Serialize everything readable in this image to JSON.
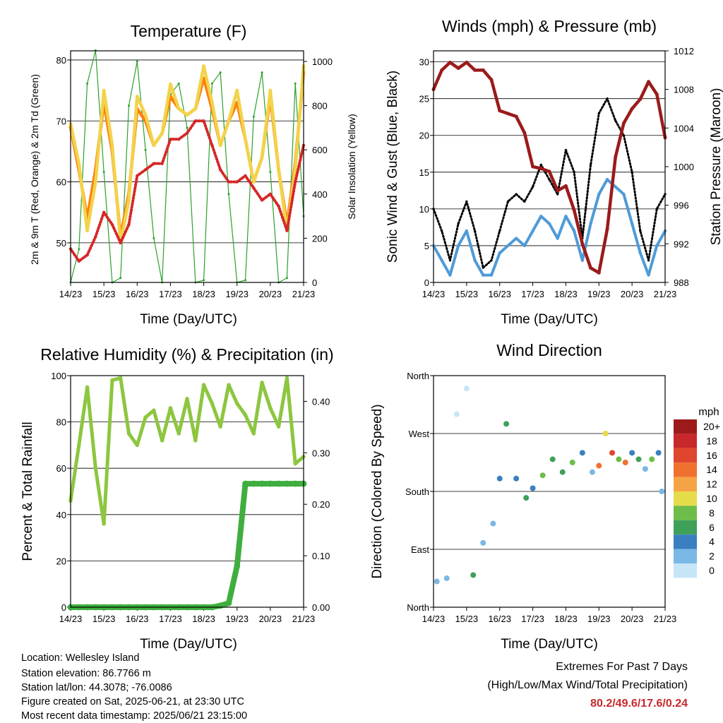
{
  "time_ticks": [
    "14/23",
    "15/23",
    "16/23",
    "17/23",
    "18/23",
    "19/23",
    "20/23",
    "21/23"
  ],
  "colors": {
    "t2m": "#d62728",
    "t9m": "#ff7f0e",
    "td": "#2ca02c",
    "solar": "#f2d34a",
    "wind": "#4f9bd7",
    "gust": "#000000",
    "pressure": "#9b1b1b",
    "rh": "#8dc63f",
    "precip": "#3fae3f",
    "extremes": "#c8282a"
  },
  "chart_data": [
    {
      "type": "line",
      "title": "Temperature (F)",
      "xlabel": "Time (Day/UTC)",
      "ylabel": "2m & 9m T (Red, Orange) & 2m Td (Green)",
      "y2label": "Solar Insolation (Yellow)",
      "x_ticks": [
        "14/23",
        "15/23",
        "16/23",
        "17/23",
        "18/23",
        "19/23",
        "20/23",
        "21/23"
      ],
      "ylim": [
        43.5,
        81.5
      ],
      "yticks": [
        50,
        60,
        70,
        80
      ],
      "y2lim": [
        0,
        1048
      ],
      "y2ticks": [
        0,
        200,
        400,
        600,
        800,
        1000
      ],
      "grid": "horizontal",
      "x": [
        0,
        0.25,
        0.5,
        0.75,
        1,
        1.25,
        1.5,
        1.75,
        2,
        2.25,
        2.5,
        2.75,
        3,
        3.25,
        3.5,
        3.75,
        4,
        4.25,
        4.5,
        4.75,
        5,
        5.25,
        5.5,
        5.75,
        6,
        6.25,
        6.5,
        6.75,
        7
      ],
      "series": [
        {
          "axis": "left",
          "values": [
            69.5,
            63,
            52,
            60,
            75,
            66,
            50,
            57,
            74,
            71,
            66,
            68,
            76,
            72,
            71,
            72,
            79,
            73,
            66,
            70,
            75,
            67,
            60,
            64,
            75,
            62,
            52,
            62,
            79
          ]
        },
        {
          "axis": "left",
          "values": [
            69,
            62,
            54,
            62,
            73,
            65,
            51,
            58,
            72,
            70,
            66,
            68,
            74,
            72,
            71,
            72,
            77,
            72,
            66,
            70,
            73,
            67,
            60,
            64,
            74,
            62,
            53,
            63,
            78
          ]
        },
        {
          "axis": "left",
          "values": [
            49,
            47,
            48,
            51,
            55,
            53,
            50,
            53,
            61,
            62,
            63,
            63,
            67,
            67,
            68,
            70,
            70,
            66,
            62,
            60,
            60,
            61,
            59,
            57,
            58,
            56,
            52,
            60,
            66
          ]
        },
        {
          "axis": "right",
          "values": [
            0,
            150,
            900,
            1050,
            500,
            0,
            20,
            800,
            1000,
            600,
            200,
            0,
            850,
            900,
            700,
            0,
            10,
            900,
            950,
            400,
            0,
            10,
            750,
            950,
            500,
            0,
            20,
            900,
            300
          ]
        }
      ]
    },
    {
      "type": "line",
      "title": "Winds (mph) & Pressure (mb)",
      "xlabel": "Time (Day/UTC)",
      "ylabel": "Sonic Wind & Gust (Blue, Black)",
      "y2label": "Station Pressure (Maroon)",
      "x_ticks": [
        "14/23",
        "15/23",
        "16/23",
        "17/23",
        "18/23",
        "19/23",
        "20/23",
        "21/23"
      ],
      "ylim": [
        0,
        31.5
      ],
      "yticks": [
        0,
        5,
        10,
        15,
        20,
        25,
        30
      ],
      "y2lim": [
        988,
        1012
      ],
      "y2ticks": [
        988,
        992,
        996,
        1000,
        1004,
        1008,
        1012
      ],
      "grid": "horizontal",
      "x": [
        0,
        0.25,
        0.5,
        0.75,
        1,
        1.25,
        1.5,
        1.75,
        2,
        2.25,
        2.5,
        2.75,
        3,
        3.25,
        3.5,
        3.75,
        4,
        4.25,
        4.5,
        4.75,
        5,
        5.25,
        5.5,
        5.75,
        6,
        6.25,
        6.5,
        6.75,
        7
      ],
      "series": [
        {
          "axis": "left",
          "values": [
            5,
            3,
            1,
            5,
            7,
            3,
            1,
            1,
            4,
            5,
            6,
            5,
            7,
            9,
            8,
            6,
            9,
            7,
            3,
            8,
            12,
            14,
            13,
            12,
            8,
            4,
            1,
            5,
            7
          ]
        },
        {
          "axis": "left",
          "values": [
            10,
            7,
            3,
            8,
            11,
            7,
            2,
            3,
            7,
            11,
            12,
            11,
            13,
            16,
            14,
            12,
            18,
            15,
            6,
            16,
            23,
            25,
            22,
            20,
            15,
            7,
            3,
            10,
            12
          ]
        },
        {
          "axis": "right",
          "values": [
            1008,
            1010,
            1010.8,
            1010.2,
            1010.8,
            1010,
            1010,
            1009,
            1005.8,
            1005.5,
            1005.2,
            1003.5,
            1000,
            999.8,
            999.5,
            997.5,
            998,
            995.5,
            992,
            989.5,
            989,
            993.5,
            1001,
            1004.5,
            1006,
            1007,
            1008.8,
            1007.5,
            1003
          ]
        }
      ]
    },
    {
      "type": "line",
      "title": "Relative Humidity (%) & Precipitation (in)",
      "xlabel": "Time (Day/UTC)",
      "ylabel": "Percent & Total Rainfall",
      "x_ticks": [
        "14/23",
        "15/23",
        "16/23",
        "17/23",
        "18/23",
        "19/23",
        "20/23",
        "21/23"
      ],
      "ylim": [
        0,
        100
      ],
      "yticks": [
        0,
        20,
        40,
        60,
        80,
        100
      ],
      "y2lim": [
        0,
        0.45
      ],
      "y2ticks": [
        0,
        0.1,
        0.2,
        0.3,
        0.4
      ],
      "y2ticklabels": [
        "0.00",
        "0.10",
        "0.20",
        "0.30",
        "0.40"
      ],
      "grid": "horizontal",
      "x": [
        0,
        0.25,
        0.5,
        0.75,
        1,
        1.25,
        1.5,
        1.75,
        2,
        2.25,
        2.5,
        2.75,
        3,
        3.25,
        3.5,
        3.75,
        4,
        4.25,
        4.5,
        4.75,
        5,
        5.25,
        5.5,
        5.75,
        6,
        6.25,
        6.5,
        6.75,
        7
      ],
      "series": [
        {
          "axis": "left",
          "values": [
            46,
            70,
            95,
            60,
            36,
            98,
            99,
            75,
            70,
            82,
            85,
            72,
            86,
            75,
            90,
            72,
            96,
            88,
            78,
            96,
            88,
            83,
            75,
            97,
            86,
            78,
            99,
            62,
            65
          ]
        },
        {
          "axis": "right",
          "values": [
            0,
            0,
            0,
            0,
            0,
            0,
            0,
            0,
            0,
            0,
            0,
            0,
            0,
            0,
            0,
            0,
            0,
            0,
            0.003,
            0.008,
            0.08,
            0.24,
            0.24,
            0.24,
            0.24,
            0.24,
            0.24,
            0.24,
            0.24
          ]
        }
      ]
    },
    {
      "type": "scatter",
      "title": "Wind Direction",
      "xlabel": "Time (Day/UTC)",
      "ylabel": "Direction (Colored By Speed)",
      "x_ticks": [
        "14/23",
        "15/23",
        "16/23",
        "17/23",
        "18/23",
        "19/23",
        "20/23",
        "21/23"
      ],
      "ylim": [
        0,
        360
      ],
      "yticks": [
        0,
        90,
        180,
        270,
        360
      ],
      "yticklabels": [
        "North",
        "East",
        "South",
        "West",
        "North"
      ],
      "grid": "horizontal",
      "colorbar": {
        "title": "mph",
        "labels": [
          "20+",
          "18",
          "16",
          "14",
          "12",
          "10",
          "8",
          "6",
          "4",
          "2",
          "0"
        ],
        "colors": [
          "#9e1a1a",
          "#c8282a",
          "#e0452d",
          "#f07030",
          "#f5a445",
          "#e5dc4a",
          "#6cbd4a",
          "#3fa05a",
          "#3a7fc0",
          "#7ab8e5",
          "#c6e6f7"
        ]
      },
      "x": [
        0.1,
        0.4,
        0.7,
        1.0,
        1.2,
        1.5,
        1.8,
        2.0,
        2.2,
        2.5,
        2.8,
        3.0,
        3.3,
        3.6,
        3.9,
        4.2,
        4.5,
        4.8,
        5.0,
        5.2,
        5.4,
        5.6,
        5.8,
        6.0,
        6.2,
        6.4,
        6.6,
        6.8,
        6.9
      ],
      "values": [
        40,
        45,
        300,
        340,
        50,
        100,
        130,
        200,
        285,
        200,
        170,
        185,
        205,
        230,
        210,
        225,
        240,
        210,
        220,
        270,
        240,
        230,
        225,
        240,
        230,
        215,
        230,
        240,
        180
      ],
      "speeds": [
        3,
        2,
        1,
        1,
        6,
        2,
        2,
        5,
        7,
        4,
        6,
        5,
        8,
        7,
        6,
        9,
        5,
        2,
        15,
        11,
        16,
        9,
        14,
        4,
        6,
        2,
        8,
        5,
        3
      ]
    }
  ],
  "info": {
    "location": "Location: Wellesley Island",
    "elevation": "Station elevation: 86.7766 m",
    "latlon": "Station lat/lon: 44.3078; -76.0086",
    "created": "Figure created on Sat, 2025-06-21, at 23:30 UTC",
    "timestamp": "Most recent data timestamp: 2025/06/21 23:15:00"
  },
  "extremes": {
    "line1": "Extremes For Past 7 Days",
    "line2": "(High/Low/Max Wind/Total Precipitation)",
    "values": "80.2/49.6/17.6/0.24"
  }
}
